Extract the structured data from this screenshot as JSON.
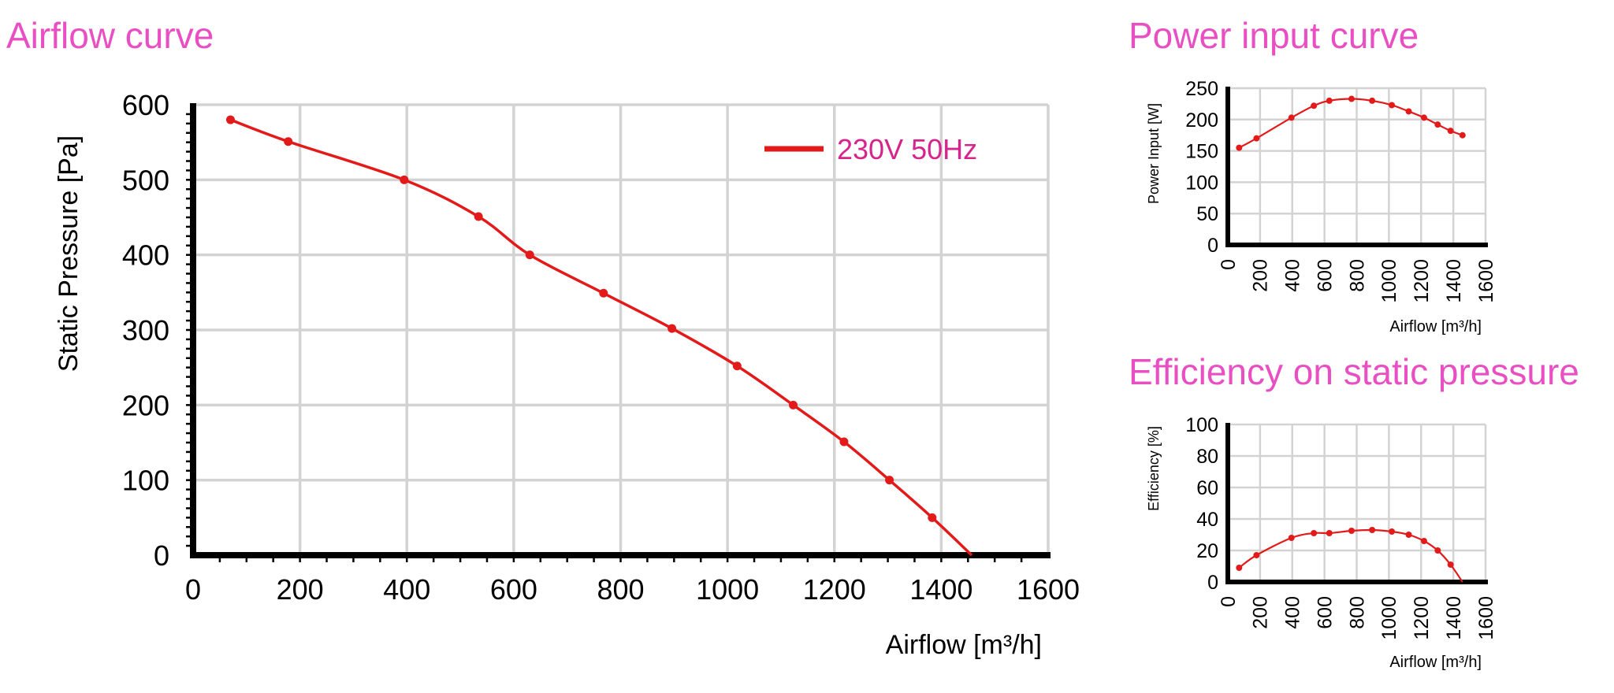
{
  "colors": {
    "title": "#e84fc2",
    "curve": "#e31a1a",
    "legend_text": "#d6248c",
    "grid": "#d3d3d3",
    "axis": "#000000"
  },
  "titles": {
    "main": "Airflow curve",
    "power": "Power input curve",
    "efficiency": "Efficiency on static pressure"
  },
  "chart_data": [
    {
      "type": "line",
      "title": "Airflow curve",
      "xlabel": "Airflow [m³/h]",
      "ylabel": "Static Pressure [Pa]",
      "xlim": [
        0,
        1600
      ],
      "ylim": [
        0,
        600
      ],
      "xticks": [
        "0",
        "200",
        "400",
        "600",
        "800",
        "1000",
        "1200",
        "1400",
        "1600"
      ],
      "yticks": [
        "0",
        "100",
        "200",
        "300",
        "400",
        "500",
        "600"
      ],
      "grid": true,
      "legend_placement": "top-right",
      "series": [
        {
          "name": "230V 50Hz",
          "points": [
            [
              70,
              580
            ],
            [
              178,
              551
            ],
            [
              395,
              500
            ],
            [
              534,
              451
            ],
            [
              630,
              400
            ],
            [
              768,
              349
            ],
            [
              896,
              302
            ],
            [
              1018,
              252
            ],
            [
              1123,
              200
            ],
            [
              1218,
              151
            ],
            [
              1303,
              100
            ],
            [
              1383,
              50
            ],
            [
              1457,
              0
            ]
          ],
          "markers": [
            [
              70,
              580
            ],
            [
              178,
              551
            ],
            [
              395,
              500
            ],
            [
              534,
              451
            ],
            [
              630,
              400
            ],
            [
              768,
              349
            ],
            [
              896,
              302
            ],
            [
              1018,
              252
            ],
            [
              1123,
              200
            ],
            [
              1218,
              151
            ],
            [
              1303,
              100
            ],
            [
              1383,
              50
            ]
          ]
        }
      ]
    },
    {
      "type": "line",
      "title": "Power input curve",
      "xlabel": "Airflow [m³/h]",
      "ylabel": "Power Input [W]",
      "xlim": [
        0,
        1600
      ],
      "ylim": [
        0,
        250
      ],
      "xticks": [
        "0",
        "200",
        "400",
        "600",
        "800",
        "1000",
        "1200",
        "1400",
        "1600"
      ],
      "yticks": [
        "0",
        "50",
        "100",
        "150",
        "200",
        "250"
      ],
      "grid": true,
      "series": [
        {
          "points": [
            [
              70,
              155
            ],
            [
              178,
              170
            ],
            [
              395,
              203
            ],
            [
              534,
              222
            ],
            [
              630,
              230
            ],
            [
              768,
              233
            ],
            [
              896,
              230
            ],
            [
              1018,
              223
            ],
            [
              1123,
              213
            ],
            [
              1218,
              203
            ],
            [
              1303,
              192
            ],
            [
              1383,
              182
            ],
            [
              1457,
              175
            ]
          ],
          "markers": [
            [
              70,
              155
            ],
            [
              178,
              170
            ],
            [
              395,
              203
            ],
            [
              534,
              222
            ],
            [
              630,
              230
            ],
            [
              768,
              233
            ],
            [
              896,
              230
            ],
            [
              1018,
              223
            ],
            [
              1123,
              213
            ],
            [
              1218,
              203
            ],
            [
              1303,
              192
            ],
            [
              1383,
              182
            ],
            [
              1457,
              175
            ]
          ]
        }
      ]
    },
    {
      "type": "line",
      "title": "Efficiency on static pressure",
      "xlabel": "Airflow [m³/h]",
      "ylabel": "Efficiency [%]",
      "xlim": [
        0,
        1600
      ],
      "ylim": [
        0,
        100
      ],
      "xticks": [
        "0",
        "200",
        "400",
        "600",
        "800",
        "1000",
        "1200",
        "1400",
        "1600"
      ],
      "yticks": [
        "0",
        "20",
        "40",
        "60",
        "80",
        "100"
      ],
      "grid": true,
      "series": [
        {
          "points": [
            [
              70,
              9
            ],
            [
              178,
              17
            ],
            [
              395,
              28
            ],
            [
              534,
              31
            ],
            [
              630,
              31
            ],
            [
              768,
              32.5
            ],
            [
              896,
              33
            ],
            [
              1018,
              32
            ],
            [
              1123,
              30
            ],
            [
              1218,
              26
            ],
            [
              1303,
              20
            ],
            [
              1383,
              11
            ],
            [
              1457,
              0
            ]
          ],
          "markers": [
            [
              70,
              9
            ],
            [
              178,
              17
            ],
            [
              395,
              28
            ],
            [
              534,
              31
            ],
            [
              630,
              31
            ],
            [
              768,
              32.5
            ],
            [
              896,
              33
            ],
            [
              1018,
              32
            ],
            [
              1123,
              30
            ],
            [
              1218,
              26
            ],
            [
              1303,
              20
            ],
            [
              1383,
              11
            ]
          ]
        }
      ]
    }
  ]
}
